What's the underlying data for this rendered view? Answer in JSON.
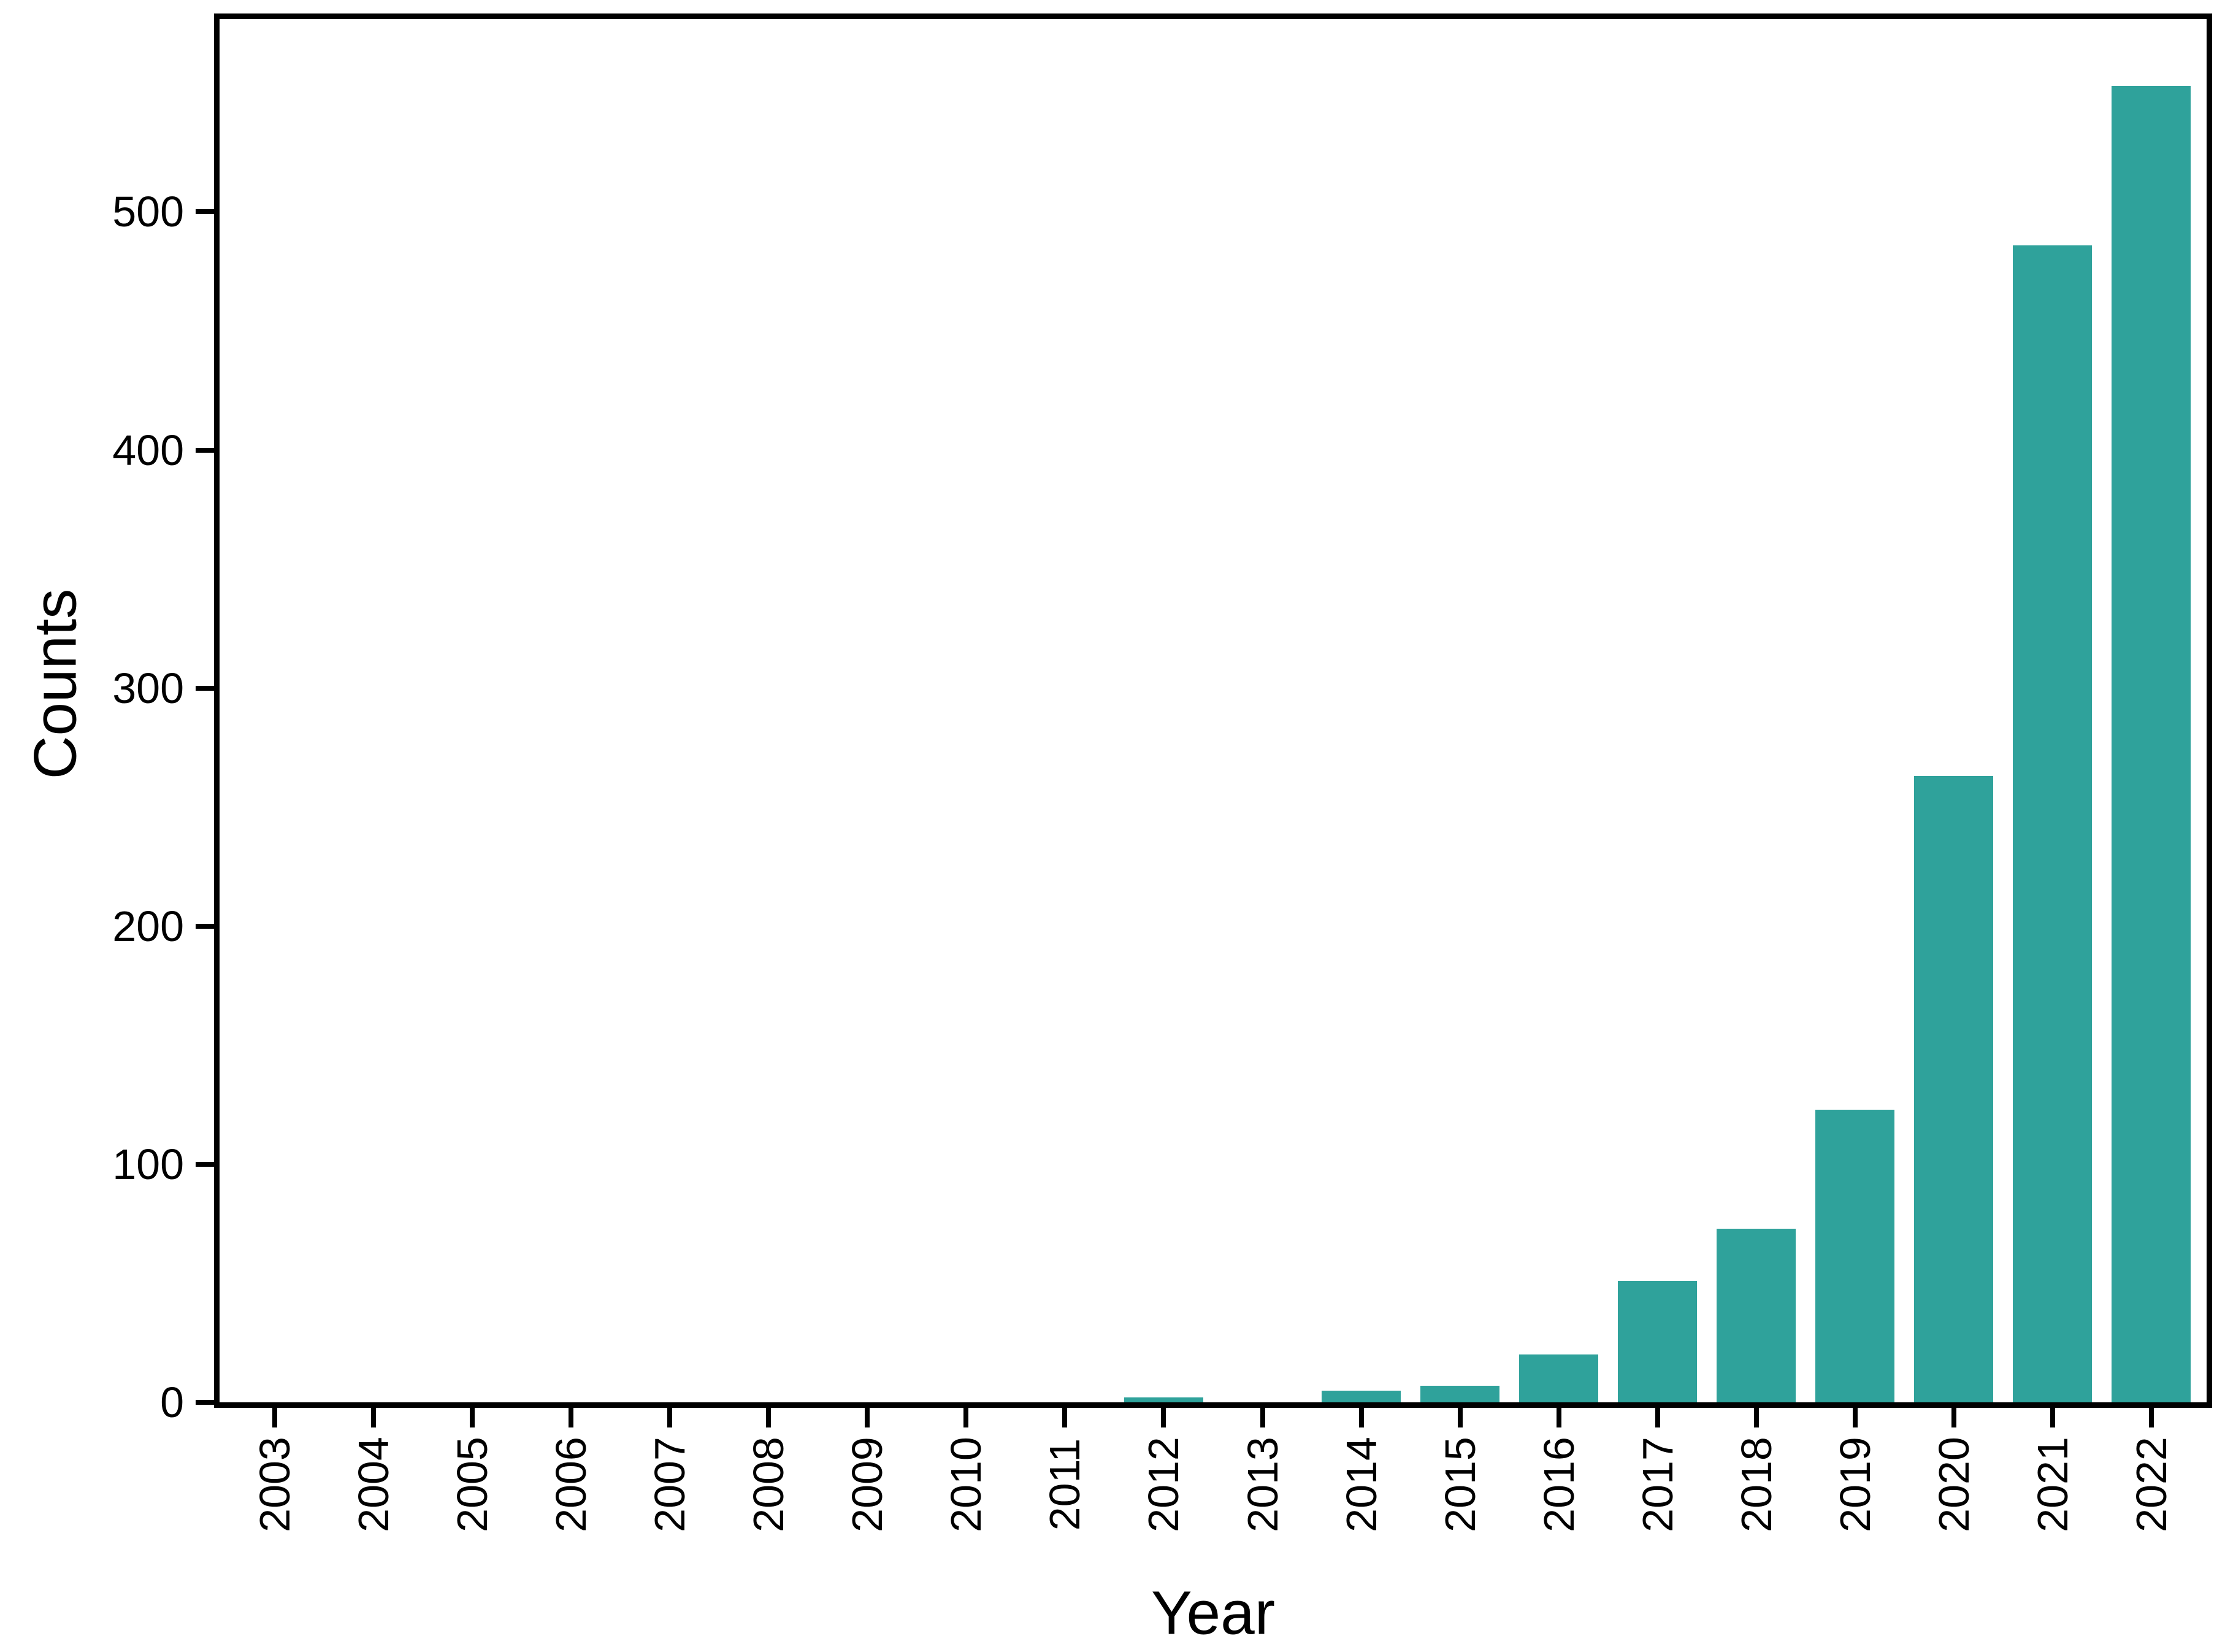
{
  "figure": {
    "background_color": "#ffffff",
    "frame_color": "#000000",
    "text_color": "#000000"
  },
  "chart_data": {
    "type": "bar",
    "title": "",
    "xlabel": "Year",
    "ylabel": "Counts",
    "categories": [
      "2003",
      "2004",
      "2005",
      "2006",
      "2007",
      "2008",
      "2009",
      "2010",
      "2011",
      "2012",
      "2013",
      "2014",
      "2015",
      "2016",
      "2017",
      "2018",
      "2019",
      "2020",
      "2021",
      "2022"
    ],
    "values": [
      0,
      0,
      0,
      0,
      0,
      0,
      0,
      0,
      0,
      2,
      0,
      5,
      7,
      20,
      51,
      73,
      123,
      263,
      486,
      553
    ],
    "yticks": [
      0,
      100,
      200,
      300,
      400,
      500
    ],
    "ylim": [
      0,
      581
    ],
    "bar_color": "#2fa29b",
    "grid": false,
    "legend": null,
    "x_tick_rotation": 90
  }
}
